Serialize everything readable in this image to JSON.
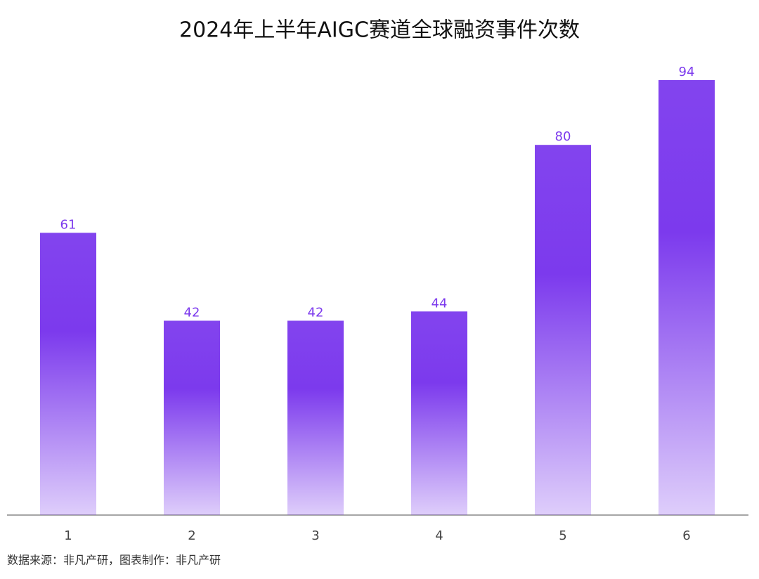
{
  "chart_data": {
    "type": "bar",
    "title": "2024年上半年AIGC赛道全球融资事件次数",
    "categories": [
      "1",
      "2",
      "3",
      "4",
      "5",
      "6"
    ],
    "values": [
      61,
      42,
      42,
      44,
      80,
      94
    ],
    "color": "#7c3aed",
    "source": "数据来源：非凡产研，图表制作：非凡产研"
  }
}
